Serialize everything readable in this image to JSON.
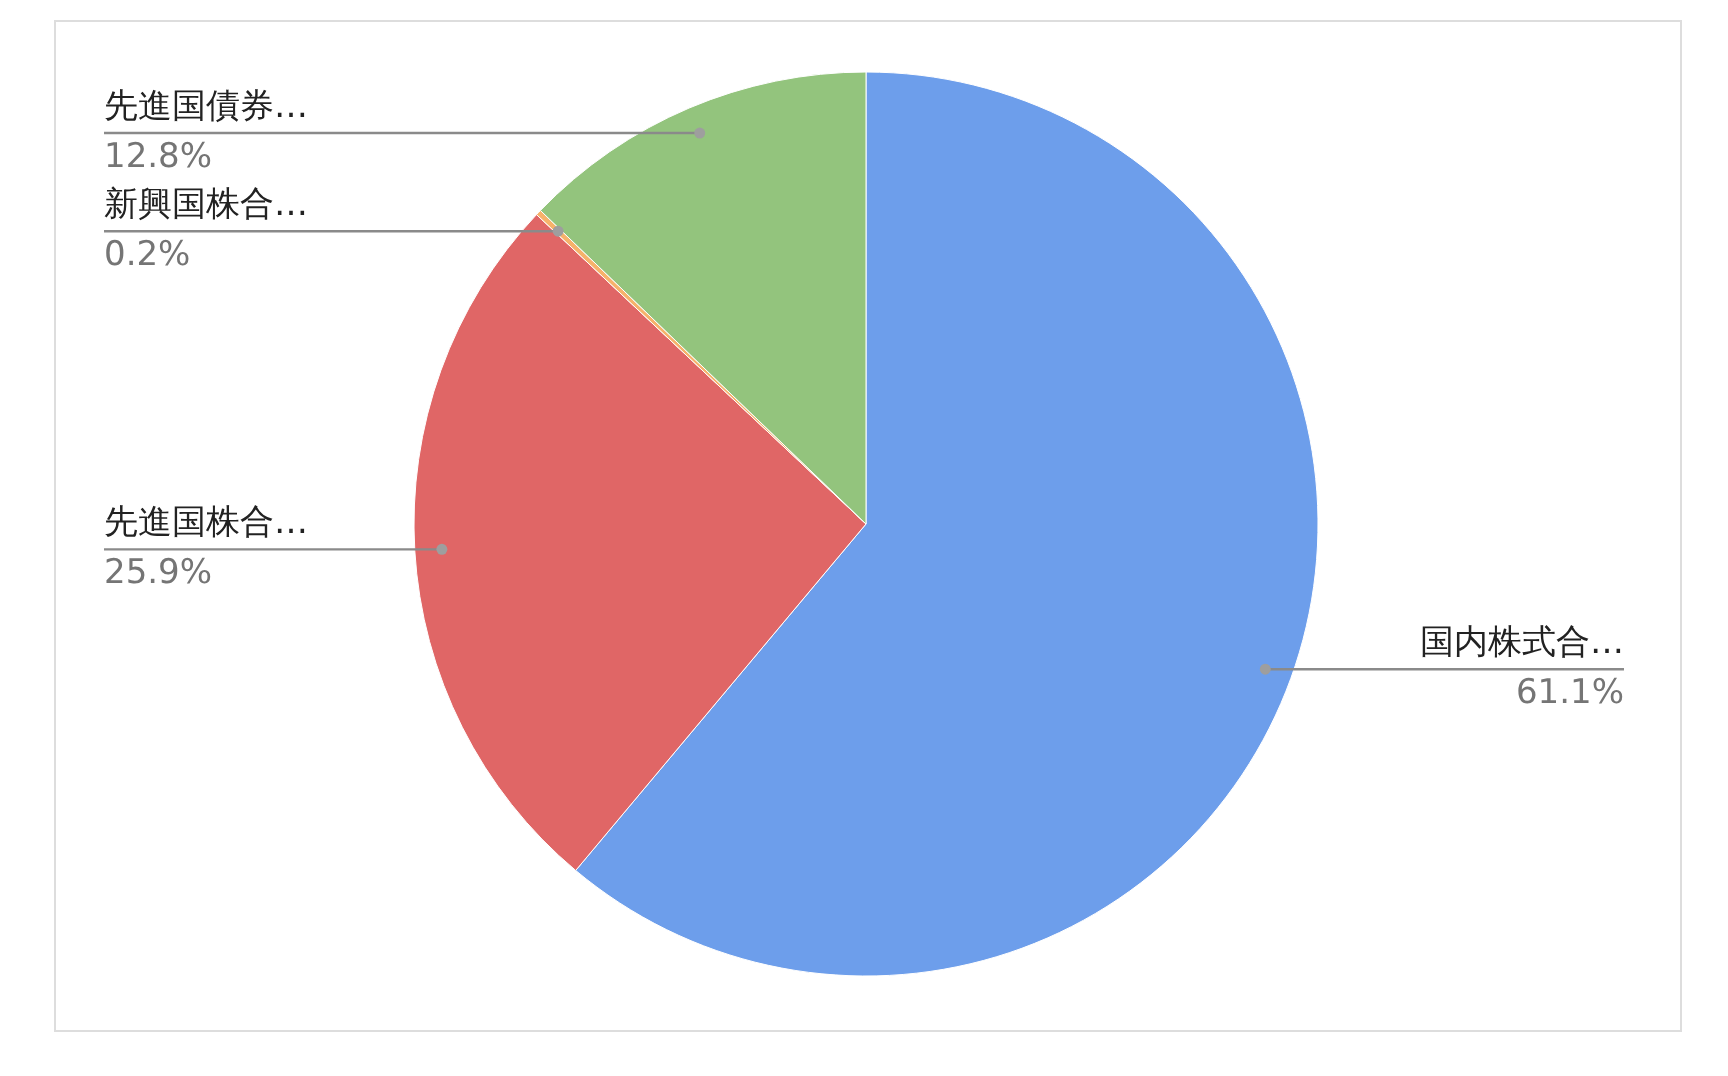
{
  "chart_data": {
    "type": "pie",
    "categories": [
      "国内株式合…",
      "先進国株合…",
      "新興国株合…",
      "先進国債券…"
    ],
    "values": [
      61.1,
      25.9,
      0.2,
      12.8
    ],
    "colors": [
      "#6d9eeb",
      "#e06666",
      "#f6b26b",
      "#93c47d"
    ],
    "value_labels": [
      "61.1%",
      "25.9%",
      "0.2%",
      "12.8%"
    ]
  }
}
